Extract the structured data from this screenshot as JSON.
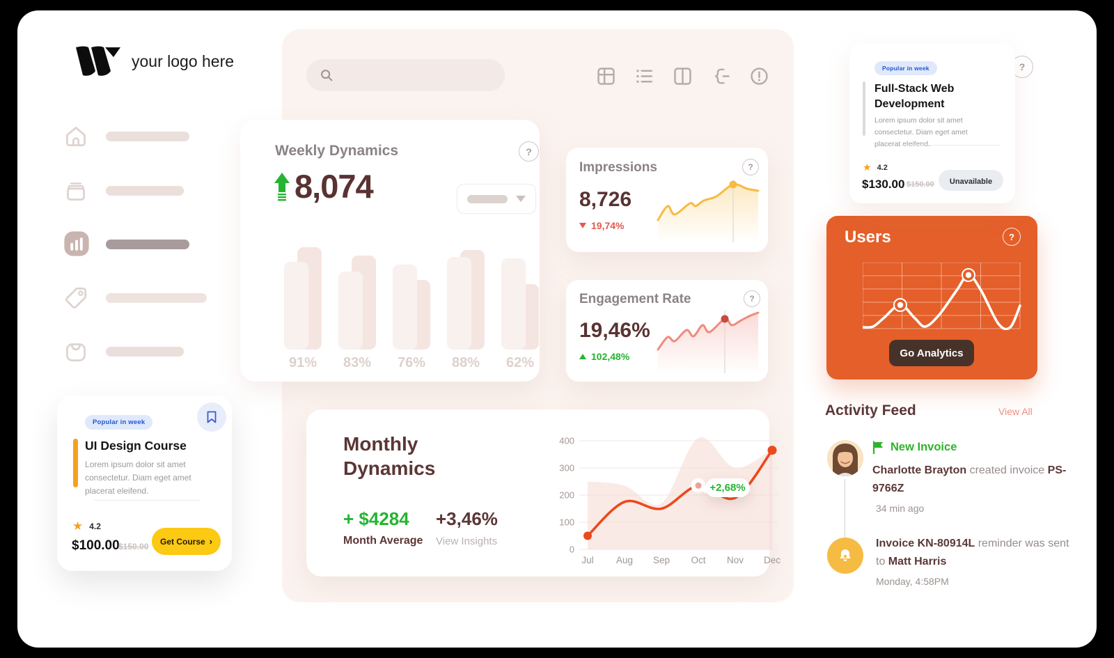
{
  "colors": {
    "maroon": "#5C3434",
    "green": "#25B432",
    "red": "#E25A4E",
    "amber": "#F6BB43",
    "orange": "#E45F2A",
    "line_orange": "#EB4A1C",
    "salmon": "#EE8B80",
    "engagement_marker": "#C94B40",
    "yellow": "#FCC913",
    "blue": "#2356CE"
  },
  "logo": {
    "mark": "W",
    "text": "your logo here"
  },
  "search": {
    "placeholder": ""
  },
  "toolbar": {
    "icons": [
      "grid",
      "list",
      "split-view",
      "flow-merge",
      "alert"
    ]
  },
  "sidebar": {
    "items": [
      {
        "icon": "home"
      },
      {
        "icon": "archive"
      },
      {
        "icon": "analytics",
        "active": true
      },
      {
        "icon": "tag"
      },
      {
        "icon": "bag"
      }
    ]
  },
  "weekly": {
    "title": "Weekly Dynamics",
    "value": "8,074",
    "trend": "up",
    "labels": [
      "91%",
      "83%",
      "76%",
      "88%",
      "62%"
    ],
    "front_heights": [
      126,
      112,
      122,
      133,
      131
    ],
    "back_heights": [
      147,
      135,
      100,
      143,
      94
    ]
  },
  "impressions": {
    "title": "Impressions",
    "value": "8,726",
    "delta": "19,74%",
    "direction": "down",
    "color": "#F6BB43",
    "points": [
      [
        4,
        64
      ],
      [
        18,
        44
      ],
      [
        28,
        56
      ],
      [
        50,
        40
      ],
      [
        58,
        44
      ],
      [
        70,
        36
      ],
      [
        88,
        30
      ],
      [
        112,
        13
      ],
      [
        132,
        19
      ],
      [
        148,
        22
      ]
    ],
    "marker_index": 7
  },
  "engagement": {
    "title": "Engagement Rate",
    "value": "19,46%",
    "delta": "102,48%",
    "direction": "up",
    "color": "#EE8B80",
    "points": [
      [
        4,
        62
      ],
      [
        18,
        44
      ],
      [
        28,
        50
      ],
      [
        45,
        34
      ],
      [
        55,
        43
      ],
      [
        68,
        27
      ],
      [
        78,
        37
      ],
      [
        100,
        18
      ],
      [
        110,
        27
      ],
      [
        122,
        21
      ],
      [
        135,
        14
      ],
      [
        148,
        9
      ]
    ],
    "marker_index": 7
  },
  "monthly": {
    "title": "Monthly Dynamics",
    "average_value": "+ $4284",
    "average_label": "Month Average",
    "insight_value": "+3,46%",
    "insight_label": "View Insights",
    "tooltip": "+2,68%",
    "months": [
      "Jul",
      "Aug",
      "Sep",
      "Oct",
      "Nov",
      "Dec"
    ],
    "yticks": [
      400,
      300,
      200,
      100,
      0
    ],
    "values": [
      50,
      175,
      150,
      235,
      190,
      365
    ],
    "area_values": [
      250,
      235,
      170,
      410,
      300,
      370
    ],
    "marker_index": 3
  },
  "course_featured": {
    "badge": "Popular in week",
    "title": "Full-Stack Web Development",
    "description": "Lorem ipsum dolor sit amet consectetur. Diam eget amet placerat eleifend.",
    "rating": "4.2",
    "price": "$130.00",
    "old_price": "$150.00",
    "button": "Unavailable"
  },
  "course_promo": {
    "badge": "Popular in week",
    "title": "UI Design Course",
    "description": "Lorem ipsum dolor sit amet consectetur. Diam eget amet placerat eleifend.",
    "rating": "4.2",
    "price": "$100.00",
    "old_price": "$150.00",
    "button": "Get Course"
  },
  "users": {
    "title": "Users",
    "button": "Go Analytics",
    "wave": [
      [
        0,
        93
      ],
      [
        15,
        92
      ],
      [
        30,
        80
      ],
      [
        54,
        61
      ],
      [
        75,
        80
      ],
      [
        90,
        92
      ],
      [
        110,
        75
      ],
      [
        135,
        40
      ],
      [
        152,
        18
      ],
      [
        170,
        40
      ],
      [
        195,
        88
      ],
      [
        212,
        93
      ],
      [
        226,
        62
      ]
    ],
    "markers": [
      [
        54,
        61
      ],
      [
        152,
        18
      ]
    ]
  },
  "activity": {
    "title": "Activity Feed",
    "view_all": "View All",
    "items": [
      {
        "label": "New Invoice",
        "segments": [
          {
            "text": "Charlotte Brayton",
            "bold": true
          },
          {
            "text": " created invoice ",
            "bold": false
          },
          {
            "text": "PS-9766Z",
            "bold": true
          }
        ],
        "time": "34 min ago"
      },
      {
        "segments": [
          {
            "text": "Invoice KN-80914L",
            "bold": true
          },
          {
            "text": " reminder was sent to ",
            "bold": false
          },
          {
            "text": "Matt Harris",
            "bold": true
          }
        ],
        "time": "Monday, 4:58PM"
      }
    ]
  }
}
